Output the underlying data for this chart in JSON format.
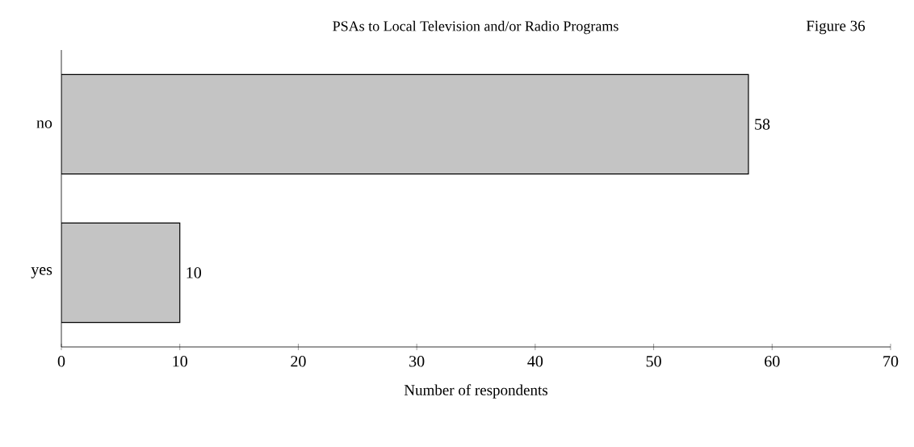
{
  "chart_data": {
    "type": "bar",
    "orientation": "horizontal",
    "title": "PSAs to Local Television and/or Radio Programs",
    "xlabel": "Number of respondents",
    "categories": [
      "no",
      "yes"
    ],
    "values": [
      58,
      10
    ],
    "color": "#c4c4c4",
    "data_labels": true,
    "xlim": [
      0,
      70
    ],
    "xticks": [
      0,
      10,
      20,
      30,
      40,
      50,
      60,
      70
    ],
    "grid": false,
    "annotations": [
      "Figure 36"
    ]
  }
}
